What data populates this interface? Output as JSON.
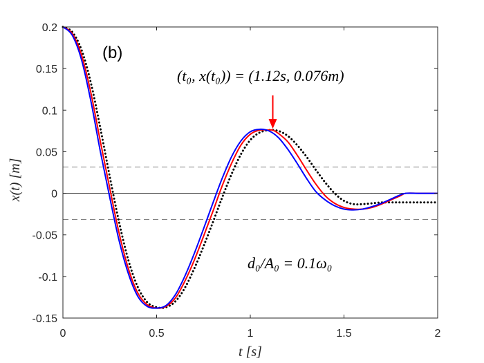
{
  "chart_data": {
    "type": "line",
    "panel_label": "(b)",
    "xlabel": "t [s]",
    "ylabel": "x(t) [m]",
    "xlim": [
      0,
      2
    ],
    "ylim": [
      -0.15,
      0.2
    ],
    "xticks": [
      0,
      0.5,
      1,
      1.5,
      2
    ],
    "xtick_labels": [
      "0",
      "0.5",
      "1",
      "1.5",
      "2"
    ],
    "yticks": [
      -0.15,
      -0.1,
      -0.05,
      0,
      0.05,
      0.1,
      0.15,
      0.2
    ],
    "ytick_labels": [
      "-0.15",
      "-0.1",
      "-0.05",
      "0",
      "0.05",
      "0.1",
      "0.15",
      "0.2"
    ],
    "grid": false,
    "threshold_lines": [
      0.0315,
      -0.0315
    ],
    "zero_line": 0,
    "annotation_point": {
      "text": "(t₀, x(t₀)) = (1.12s, 0.076m)",
      "x": 1.12,
      "y": 0.076,
      "arrow_color": "#ff0000"
    },
    "parameter_text": "d₀/A₀ = 0.1ω₀",
    "series": [
      {
        "name": "blue",
        "color": "#0000ff",
        "style": "solid",
        "x": [
          0,
          0.05,
          0.1,
          0.15,
          0.2,
          0.25,
          0.3,
          0.35,
          0.4,
          0.45,
          0.5,
          0.55,
          0.6,
          0.65,
          0.7,
          0.75,
          0.8,
          0.85,
          0.9,
          0.95,
          1.0,
          1.05,
          1.1,
          1.15,
          1.2,
          1.25,
          1.3,
          1.35,
          1.4,
          1.45,
          1.5,
          1.55,
          1.6,
          1.65,
          1.7,
          1.75,
          1.8,
          1.83,
          1.9,
          2.0
        ],
        "values": [
          0.2,
          0.19,
          0.16,
          0.11,
          0.05,
          -0.005,
          -0.057,
          -0.097,
          -0.124,
          -0.136,
          -0.138,
          -0.135,
          -0.122,
          -0.1,
          -0.073,
          -0.043,
          -0.012,
          0.018,
          0.044,
          0.063,
          0.074,
          0.077,
          0.075,
          0.067,
          0.053,
          0.036,
          0.018,
          0.002,
          -0.008,
          -0.015,
          -0.019,
          -0.02,
          -0.019,
          -0.016,
          -0.012,
          -0.007,
          -0.002,
          0.0,
          0.0,
          0.0
        ]
      },
      {
        "name": "red",
        "color": "#ff0000",
        "style": "solid",
        "x": [
          0,
          0.05,
          0.1,
          0.15,
          0.2,
          0.25,
          0.3,
          0.35,
          0.4,
          0.45,
          0.5,
          0.55,
          0.6,
          0.65,
          0.7,
          0.75,
          0.8,
          0.85,
          0.9,
          0.95,
          1.0,
          1.05,
          1.1,
          1.12,
          1.15,
          1.2,
          1.25,
          1.3,
          1.35,
          1.4,
          1.45,
          1.5,
          1.55,
          1.6,
          1.65,
          1.7,
          1.75,
          1.8,
          1.83,
          1.9,
          2.0
        ],
        "values": [
          0.2,
          0.192,
          0.166,
          0.12,
          0.062,
          0.006,
          -0.048,
          -0.091,
          -0.12,
          -0.134,
          -0.138,
          -0.136,
          -0.126,
          -0.106,
          -0.081,
          -0.052,
          -0.022,
          0.009,
          0.036,
          0.058,
          0.071,
          0.076,
          0.076,
          0.076,
          0.072,
          0.062,
          0.046,
          0.028,
          0.011,
          -0.003,
          -0.012,
          -0.017,
          -0.019,
          -0.019,
          -0.017,
          -0.013,
          -0.008,
          -0.003,
          0.0,
          0.0,
          0.0
        ]
      },
      {
        "name": "black-dotted",
        "color": "#000000",
        "style": "dotted",
        "x": [
          0,
          0.05,
          0.1,
          0.15,
          0.2,
          0.25,
          0.3,
          0.35,
          0.4,
          0.45,
          0.5,
          0.55,
          0.6,
          0.65,
          0.7,
          0.75,
          0.8,
          0.85,
          0.9,
          0.95,
          1.0,
          1.05,
          1.1,
          1.15,
          1.2,
          1.25,
          1.3,
          1.35,
          1.4,
          1.45,
          1.5,
          1.55,
          1.6,
          1.65,
          1.7,
          1.75,
          1.8,
          1.9,
          2.0
        ],
        "values": [
          0.2,
          0.194,
          0.172,
          0.132,
          0.078,
          0.02,
          -0.035,
          -0.081,
          -0.113,
          -0.131,
          -0.137,
          -0.137,
          -0.13,
          -0.114,
          -0.091,
          -0.064,
          -0.035,
          -0.005,
          0.023,
          0.047,
          0.064,
          0.073,
          0.076,
          0.075,
          0.069,
          0.058,
          0.044,
          0.028,
          0.013,
          0.0,
          -0.009,
          -0.013,
          -0.013,
          -0.012,
          -0.011,
          -0.011,
          -0.011,
          -0.011,
          -0.011
        ]
      }
    ]
  }
}
